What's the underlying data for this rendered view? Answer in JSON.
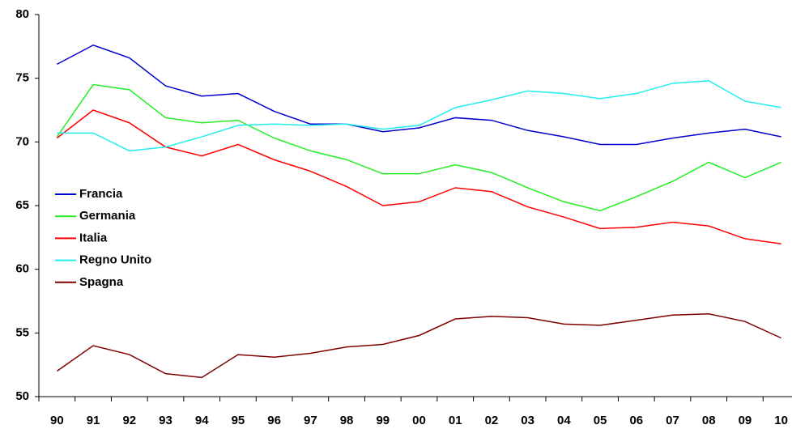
{
  "chart_data": {
    "type": "line",
    "categories": [
      "90",
      "91",
      "92",
      "93",
      "94",
      "95",
      "96",
      "97",
      "98",
      "99",
      "00",
      "01",
      "02",
      "03",
      "04",
      "05",
      "06",
      "07",
      "08",
      "09",
      "10"
    ],
    "series": [
      {
        "name": "Francia",
        "color": "#0000cc",
        "values": [
          76.1,
          77.6,
          76.6,
          74.4,
          73.6,
          73.8,
          72.4,
          71.4,
          71.4,
          70.8,
          71.1,
          71.9,
          71.7,
          70.9,
          70.4,
          69.8,
          69.8,
          70.3,
          70.7,
          71.0,
          70.4
        ]
      },
      {
        "name": "Germania",
        "color": "#22ee22",
        "values": [
          70.4,
          74.5,
          74.1,
          71.9,
          71.5,
          71.7,
          70.3,
          69.3,
          68.6,
          67.5,
          67.5,
          68.2,
          67.6,
          66.4,
          65.3,
          64.6,
          65.7,
          66.9,
          68.4,
          67.2,
          68.4
        ]
      },
      {
        "name": "Italia",
        "color": "#ff0000",
        "values": [
          70.3,
          72.5,
          71.5,
          69.6,
          68.9,
          69.8,
          68.6,
          67.7,
          66.5,
          65.0,
          65.3,
          66.4,
          66.1,
          64.9,
          64.1,
          63.2,
          63.3,
          63.7,
          63.4,
          62.4,
          62.0
        ]
      },
      {
        "name": "Regno Unito",
        "color": "#22eeee",
        "values": [
          70.7,
          70.7,
          69.3,
          69.6,
          70.4,
          71.3,
          71.4,
          71.3,
          71.4,
          71.0,
          71.3,
          72.7,
          73.3,
          74.0,
          73.8,
          73.4,
          73.8,
          74.6,
          74.8,
          73.2,
          72.7
        ]
      },
      {
        "name": "Spagna",
        "color": "#800000",
        "values": [
          52.0,
          54.0,
          53.3,
          51.8,
          51.5,
          53.3,
          53.1,
          53.4,
          53.9,
          54.1,
          54.8,
          56.1,
          56.3,
          56.2,
          55.7,
          55.6,
          56.0,
          56.4,
          56.5,
          55.9,
          54.6
        ]
      }
    ],
    "ylim": [
      50,
      80
    ],
    "yticks": [
      50,
      55,
      60,
      65,
      70,
      75,
      80
    ],
    "grid": false,
    "legend": "left"
  }
}
